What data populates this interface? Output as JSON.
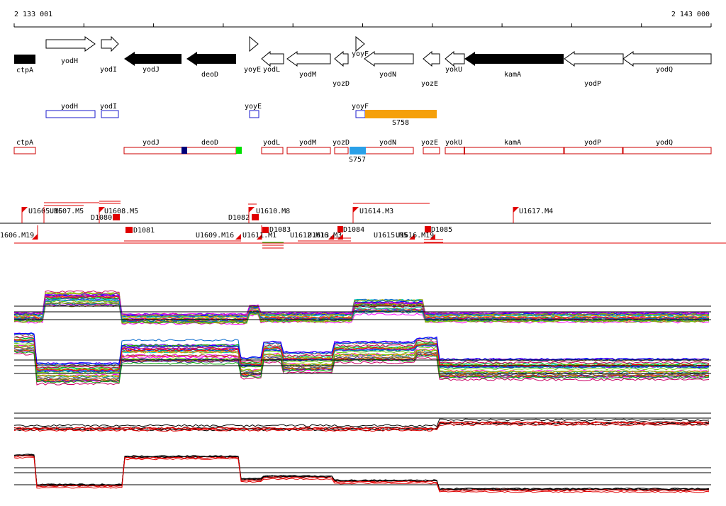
{
  "ruler": {
    "start_label": "2 133 001",
    "end_label": "2 143 000"
  },
  "genes": [
    {
      "name": "ctpA",
      "dir": "none",
      "filled": true
    },
    {
      "name": "yodH",
      "dir": "right",
      "filled": false
    },
    {
      "name": "yodI",
      "dir": "right",
      "filled": false
    },
    {
      "name": "yodJ",
      "dir": "left",
      "filled": true
    },
    {
      "name": "deoD",
      "dir": "left",
      "filled": true
    },
    {
      "name": "yoyE",
      "dir": "right",
      "filled": false
    },
    {
      "name": "yodL",
      "dir": "left",
      "filled": false
    },
    {
      "name": "yodM",
      "dir": "left",
      "filled": false
    },
    {
      "name": "yozD",
      "dir": "left",
      "filled": false
    },
    {
      "name": "yoyF",
      "dir": "right",
      "filled": false
    },
    {
      "name": "yodN",
      "dir": "left",
      "filled": false
    },
    {
      "name": "yozE",
      "dir": "left",
      "filled": false
    },
    {
      "name": "yokU",
      "dir": "left",
      "filled": false
    },
    {
      "name": "kamA",
      "dir": "left",
      "filled": true
    },
    {
      "name": "yodP",
      "dir": "left",
      "filled": false
    },
    {
      "name": "yodQ",
      "dir": "left",
      "filled": false
    }
  ],
  "blue_track": [
    {
      "name": "yodH"
    },
    {
      "name": "yodI"
    },
    {
      "name": "yoyE"
    },
    {
      "name": "yoyF"
    }
  ],
  "blue_feature": {
    "name": "S758",
    "color": "#f5a00a"
  },
  "red_track": [
    {
      "name": "ctpA"
    },
    {
      "name": "yodJ"
    },
    {
      "name": "deoD"
    },
    {
      "name": "yodL"
    },
    {
      "name": "yodM"
    },
    {
      "name": "yozD"
    },
    {
      "name": "yodN"
    },
    {
      "name": "yozE"
    },
    {
      "name": "yokU"
    },
    {
      "name": "kamA"
    },
    {
      "name": "yodP"
    },
    {
      "name": "yodQ"
    }
  ],
  "red_feature": {
    "name": "S757",
    "color": "#2aa0e8"
  },
  "markers_top": [
    {
      "label": "U1605.M5"
    },
    {
      "label": "U1607.M5"
    },
    {
      "label": "U1608.M5"
    },
    {
      "label": "D1080"
    },
    {
      "label": "D1082"
    },
    {
      "label": "U1610.M8"
    },
    {
      "label": "U1614.M3"
    },
    {
      "label": "U1617.M4"
    }
  ],
  "markers_bottom": [
    {
      "label": "1606.M19"
    },
    {
      "label": "D1081"
    },
    {
      "label": "U1609.M16"
    },
    {
      "label": "U1611.M1"
    },
    {
      "label": "D1083"
    },
    {
      "label": "U1612.M16"
    },
    {
      "label": "U1613.M3"
    },
    {
      "label": "D1084"
    },
    {
      "label": "U1615.M5"
    },
    {
      "label": "U1616.M19"
    },
    {
      "label": "D1085"
    }
  ],
  "colors": {
    "filled_gene": "#000000",
    "blue_box": "#1a1acc",
    "red_box": "#cc0000",
    "marker": "#ff0000",
    "navy_block": "#00007a",
    "green_block": "#00e000",
    "profile_red": "#e00000",
    "profile_black": "#000000"
  }
}
